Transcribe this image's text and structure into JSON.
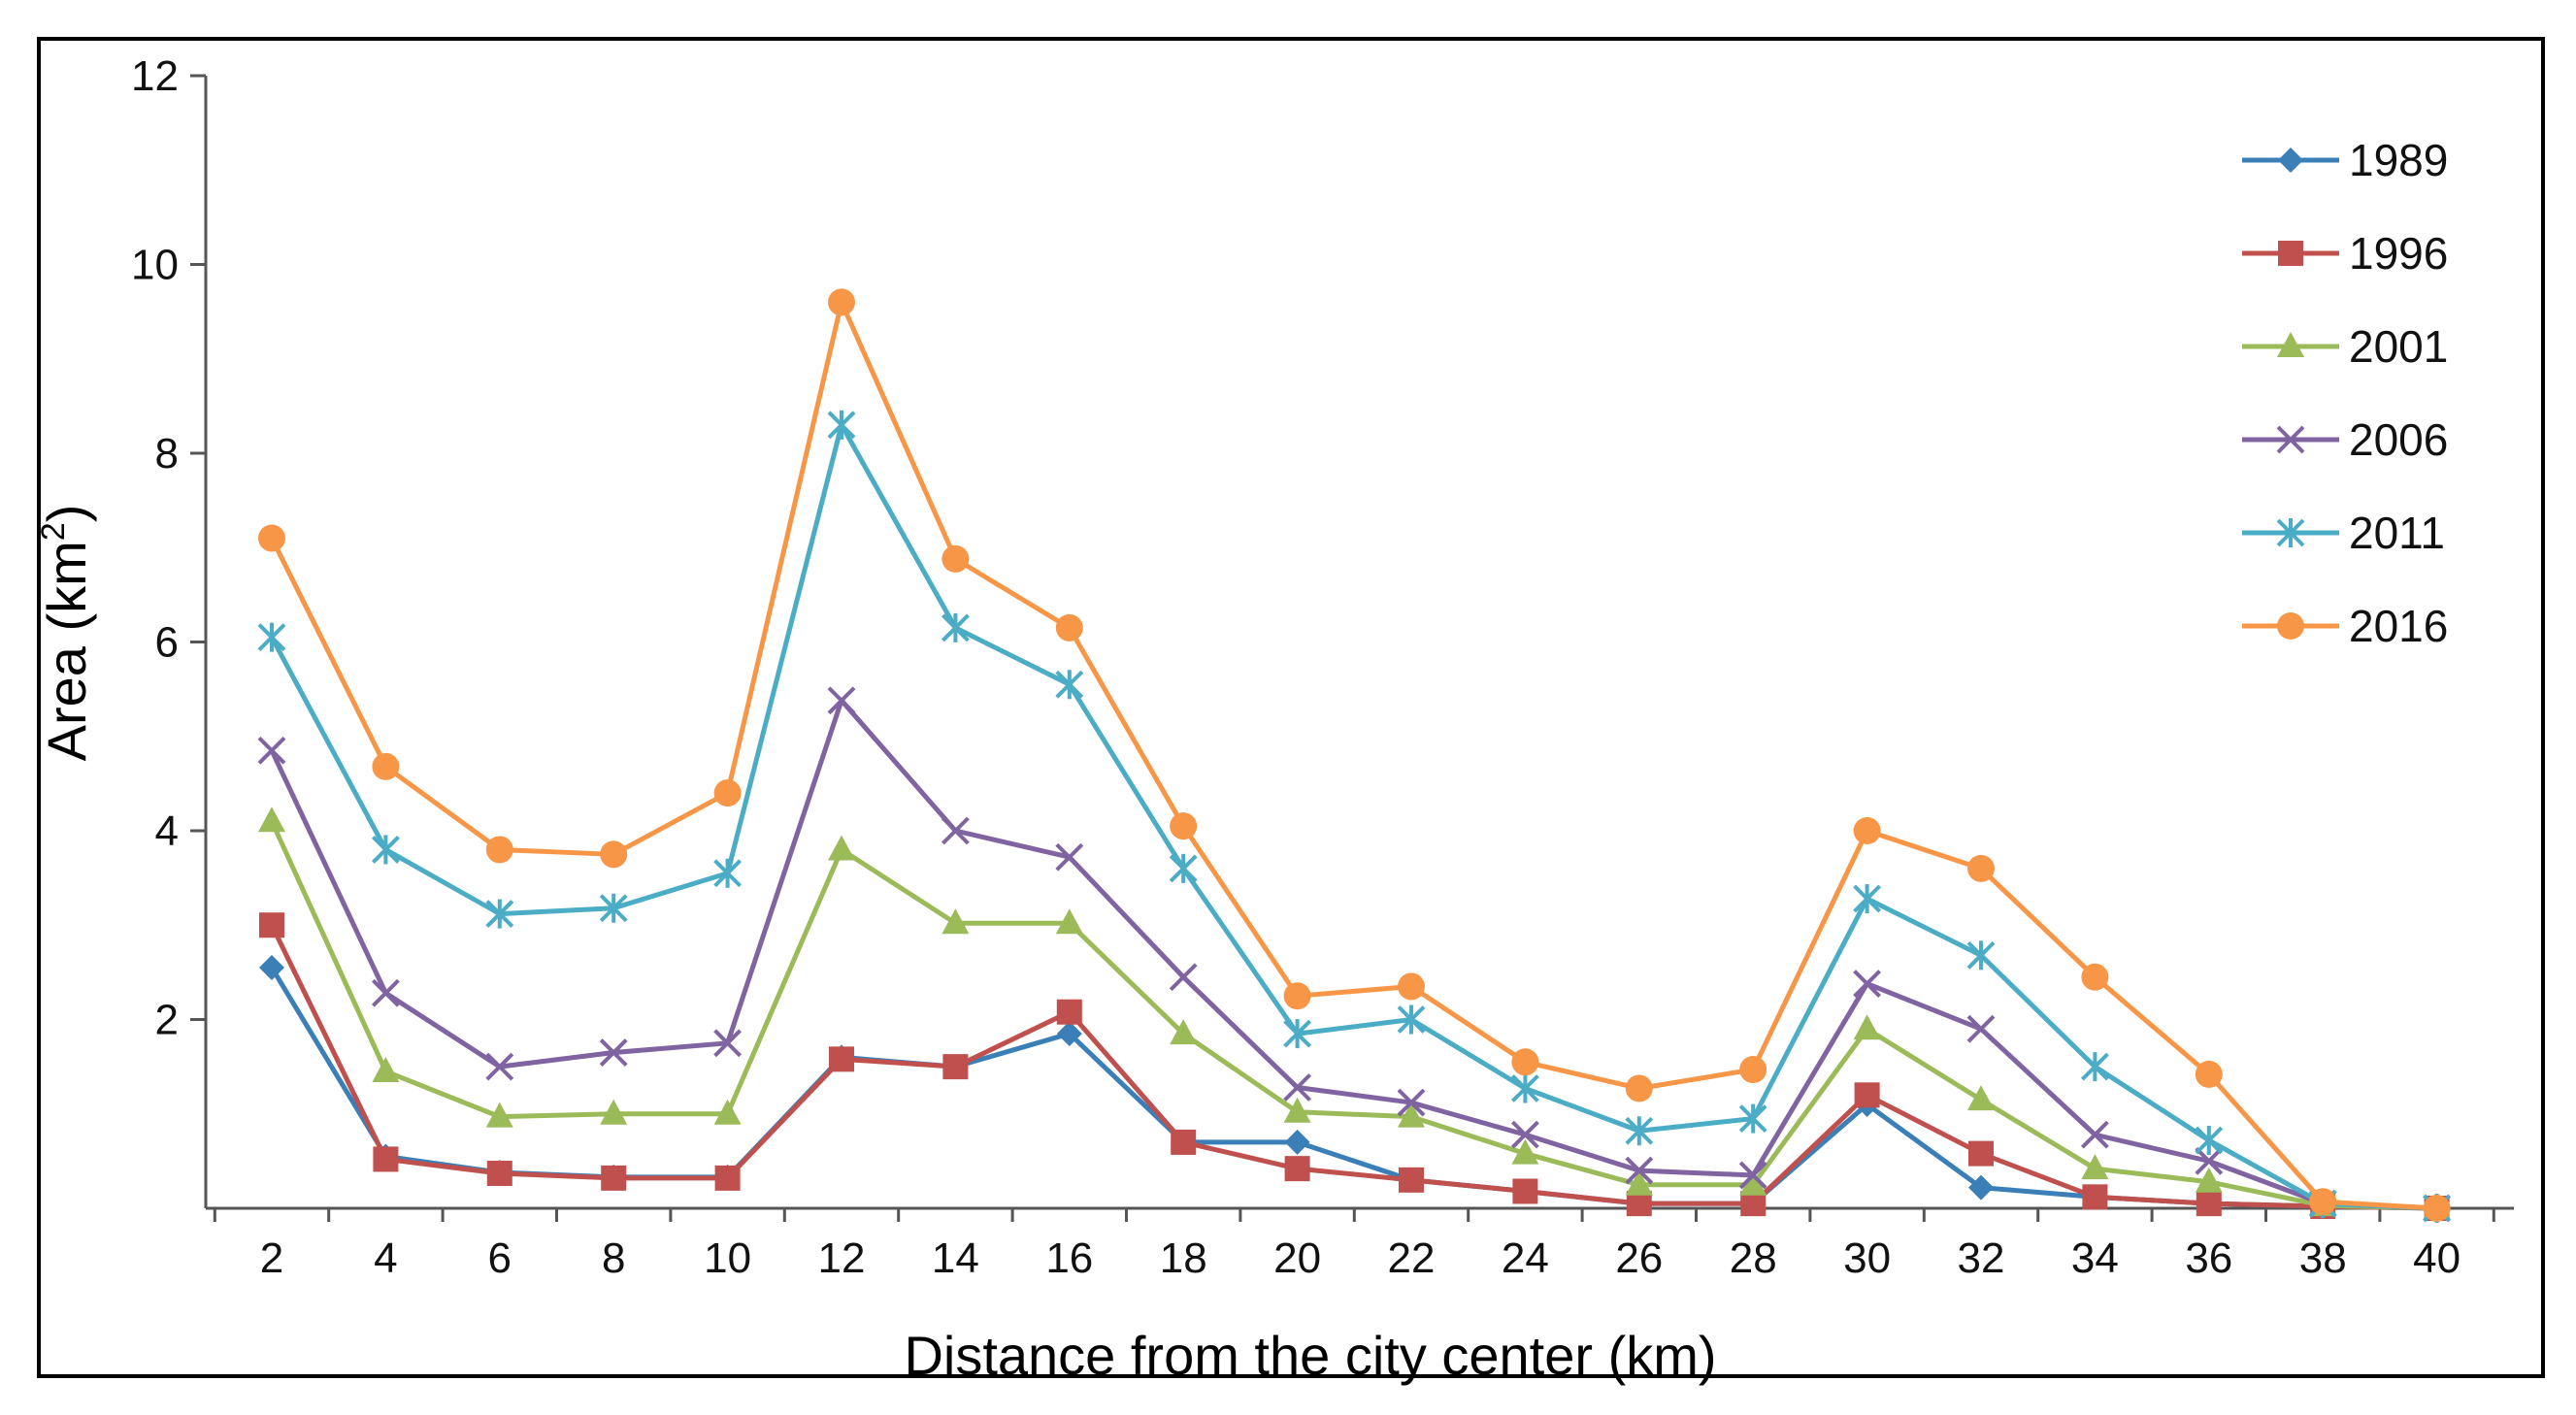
{
  "chart_data": {
    "type": "line",
    "title": "",
    "xlabel": "Distance from the city center (km)",
    "ylabel": "Area (km",
    "ylabel_superscript": "2",
    "ylabel_suffix": ")",
    "x": [
      2,
      4,
      6,
      8,
      10,
      12,
      14,
      16,
      18,
      20,
      22,
      24,
      26,
      28,
      30,
      32,
      34,
      36,
      38,
      40
    ],
    "ylim": [
      0,
      12
    ],
    "yticks": [
      2,
      4,
      6,
      8,
      10,
      12
    ],
    "grid": false,
    "legend_position": "top-right",
    "series": [
      {
        "name": "1989",
        "color": "#3a7fb7",
        "marker": "diamond",
        "values": [
          2.55,
          0.55,
          0.38,
          0.33,
          0.33,
          1.6,
          1.5,
          1.85,
          0.7,
          0.7,
          0.3,
          0.18,
          0.05,
          0.05,
          1.1,
          0.22,
          0.12,
          0.05,
          0.02,
          0.0
        ]
      },
      {
        "name": "1996",
        "color": "#c0504d",
        "marker": "square",
        "values": [
          3.0,
          0.52,
          0.37,
          0.32,
          0.32,
          1.58,
          1.5,
          2.08,
          0.7,
          0.42,
          0.3,
          0.18,
          0.05,
          0.05,
          1.2,
          0.58,
          0.12,
          0.05,
          0.02,
          0.0
        ]
      },
      {
        "name": "2001",
        "color": "#9bbb59",
        "marker": "triangle",
        "values": [
          4.1,
          1.45,
          0.97,
          1.0,
          1.0,
          3.8,
          3.02,
          3.02,
          1.85,
          1.02,
          0.97,
          0.58,
          0.25,
          0.25,
          1.9,
          1.15,
          0.42,
          0.28,
          0.03,
          0.0
        ]
      },
      {
        "name": "2006",
        "color": "#8064a2",
        "marker": "x",
        "values": [
          4.85,
          2.28,
          1.5,
          1.65,
          1.75,
          5.38,
          4.0,
          3.72,
          2.45,
          1.28,
          1.12,
          0.78,
          0.4,
          0.35,
          2.38,
          1.9,
          0.78,
          0.5,
          0.05,
          0.0
        ]
      },
      {
        "name": "2011",
        "color": "#4bacc6",
        "marker": "star",
        "values": [
          6.05,
          3.8,
          3.12,
          3.18,
          3.55,
          8.3,
          6.15,
          5.55,
          3.6,
          1.85,
          2.0,
          1.27,
          0.82,
          0.95,
          3.28,
          2.68,
          1.5,
          0.72,
          0.05,
          0.0
        ]
      },
      {
        "name": "2016",
        "color": "#f79646",
        "marker": "circle",
        "values": [
          7.1,
          4.68,
          3.8,
          3.75,
          4.4,
          9.6,
          6.88,
          6.15,
          4.05,
          2.25,
          2.35,
          1.55,
          1.27,
          1.47,
          4.0,
          3.6,
          2.45,
          1.42,
          0.07,
          0.0
        ]
      }
    ]
  }
}
